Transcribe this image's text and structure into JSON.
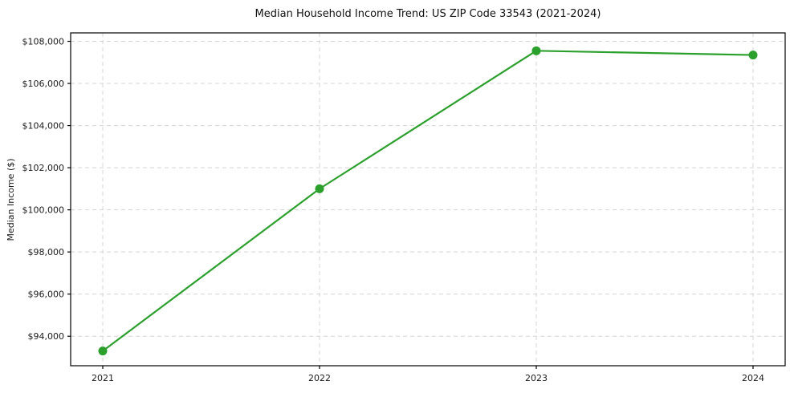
{
  "chart_data": {
    "type": "line",
    "title": "Median Household Income Trend: US ZIP Code 33543 (2021-2024)",
    "xlabel": "",
    "ylabel": "Median Income ($)",
    "x": [
      2021,
      2022,
      2023,
      2024
    ],
    "xtick_labels": [
      "2021",
      "2022",
      "2023",
      "2024"
    ],
    "series": [
      {
        "name": "Median Household Income",
        "values": [
          93300,
          101000,
          107550,
          107350
        ]
      }
    ],
    "ytick_values": [
      94000,
      96000,
      98000,
      100000,
      102000,
      104000,
      106000,
      108000
    ],
    "ytick_labels": [
      "$94,000",
      "$96,000",
      "$98,000",
      "$100,000",
      "$102,000",
      "$104,000",
      "$106,000",
      "$108,000"
    ],
    "ylim": [
      92600,
      108400
    ],
    "grid": {
      "visible": true,
      "style": "dashed",
      "color": "#d4d4d4"
    },
    "legend_position": "none",
    "line_color": "#2ca02c",
    "marker": "circle",
    "background_color": "#ffffff",
    "spine_color": "#000000",
    "text_color": "#1a1a1a"
  }
}
